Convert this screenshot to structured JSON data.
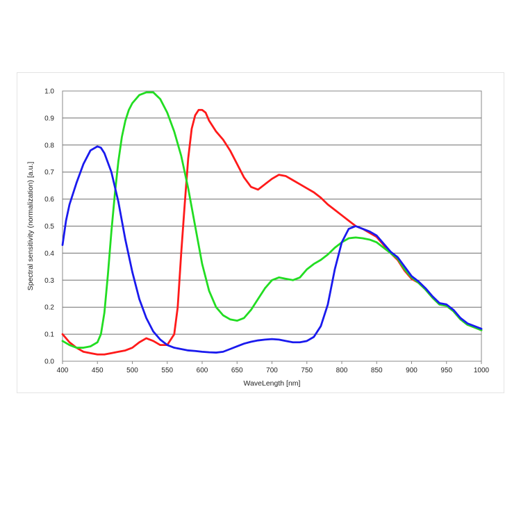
{
  "chart_data": {
    "type": "line",
    "title": "",
    "xlabel": "WaveLength [nm]",
    "ylabel": "Spectral sensitivity (normalization) [a.u.]",
    "xlim": [
      400,
      1000
    ],
    "ylim": [
      0.0,
      1.0
    ],
    "xticks": [
      "400",
      "450",
      "500",
      "550",
      "600",
      "650",
      "700",
      "750",
      "800",
      "850",
      "900",
      "950",
      "1000"
    ],
    "yticks": [
      "0.0",
      "0.1",
      "0.2",
      "0.3",
      "0.4",
      "0.5",
      "0.6",
      "0.7",
      "0.8",
      "0.9",
      "1.0"
    ],
    "grid": true,
    "legend": "none",
    "series": [
      {
        "color": "#ff1a1a",
        "x": [
          400,
          410,
          420,
          430,
          440,
          450,
          460,
          470,
          480,
          490,
          500,
          510,
          520,
          530,
          540,
          550,
          560,
          565,
          570,
          575,
          580,
          585,
          590,
          595,
          600,
          605,
          610,
          620,
          630,
          640,
          650,
          660,
          670,
          680,
          690,
          700,
          710,
          720,
          730,
          740,
          750,
          760,
          770,
          780,
          790,
          800,
          810,
          820,
          830,
          840,
          850,
          860,
          870,
          880,
          890,
          900,
          910,
          920,
          930,
          940,
          950,
          960,
          970,
          980,
          990,
          1000
        ],
        "y": [
          0.1,
          0.07,
          0.05,
          0.035,
          0.03,
          0.025,
          0.025,
          0.03,
          0.035,
          0.04,
          0.05,
          0.07,
          0.085,
          0.075,
          0.06,
          0.06,
          0.1,
          0.2,
          0.4,
          0.58,
          0.75,
          0.86,
          0.91,
          0.93,
          0.93,
          0.92,
          0.89,
          0.85,
          0.82,
          0.78,
          0.73,
          0.68,
          0.645,
          0.635,
          0.655,
          0.675,
          0.69,
          0.685,
          0.67,
          0.655,
          0.64,
          0.625,
          0.605,
          0.58,
          0.56,
          0.54,
          0.52,
          0.5,
          0.49,
          0.475,
          0.46,
          0.43,
          0.4,
          0.375,
          0.335,
          0.305,
          0.29,
          0.265,
          0.235,
          0.21,
          0.205,
          0.185,
          0.155,
          0.135,
          0.125,
          0.115
        ]
      },
      {
        "color": "#22dd22",
        "x": [
          400,
          410,
          420,
          430,
          440,
          450,
          455,
          460,
          465,
          470,
          475,
          480,
          485,
          490,
          495,
          500,
          510,
          520,
          530,
          540,
          550,
          560,
          570,
          580,
          590,
          600,
          610,
          620,
          630,
          640,
          650,
          660,
          670,
          680,
          690,
          700,
          710,
          720,
          730,
          740,
          750,
          760,
          770,
          780,
          790,
          800,
          810,
          820,
          830,
          840,
          850,
          860,
          870,
          880,
          890,
          900,
          910,
          920,
          930,
          940,
          950,
          960,
          970,
          980,
          990,
          1000
        ],
        "y": [
          0.075,
          0.06,
          0.05,
          0.05,
          0.055,
          0.07,
          0.1,
          0.18,
          0.32,
          0.48,
          0.62,
          0.74,
          0.83,
          0.89,
          0.93,
          0.955,
          0.985,
          0.995,
          0.995,
          0.97,
          0.92,
          0.85,
          0.76,
          0.64,
          0.5,
          0.36,
          0.26,
          0.2,
          0.17,
          0.155,
          0.15,
          0.16,
          0.19,
          0.23,
          0.27,
          0.3,
          0.31,
          0.305,
          0.3,
          0.31,
          0.34,
          0.36,
          0.375,
          0.395,
          0.42,
          0.44,
          0.455,
          0.458,
          0.455,
          0.45,
          0.44,
          0.42,
          0.4,
          0.38,
          0.34,
          0.31,
          0.29,
          0.265,
          0.235,
          0.21,
          0.205,
          0.185,
          0.155,
          0.135,
          0.125,
          0.115
        ]
      },
      {
        "color": "#1a1aee",
        "x": [
          400,
          405,
          410,
          420,
          430,
          440,
          450,
          455,
          460,
          470,
          480,
          490,
          500,
          510,
          520,
          530,
          540,
          550,
          560,
          570,
          580,
          590,
          600,
          610,
          620,
          630,
          640,
          650,
          660,
          670,
          680,
          690,
          700,
          710,
          720,
          730,
          740,
          750,
          760,
          770,
          780,
          790,
          800,
          810,
          820,
          830,
          840,
          850,
          860,
          870,
          880,
          890,
          900,
          910,
          920,
          930,
          940,
          950,
          960,
          970,
          980,
          990,
          1000
        ],
        "y": [
          0.43,
          0.52,
          0.58,
          0.66,
          0.73,
          0.78,
          0.795,
          0.79,
          0.77,
          0.7,
          0.59,
          0.45,
          0.33,
          0.23,
          0.16,
          0.11,
          0.08,
          0.06,
          0.05,
          0.045,
          0.04,
          0.038,
          0.035,
          0.033,
          0.032,
          0.035,
          0.045,
          0.055,
          0.065,
          0.072,
          0.077,
          0.08,
          0.082,
          0.08,
          0.075,
          0.07,
          0.07,
          0.075,
          0.09,
          0.13,
          0.21,
          0.34,
          0.44,
          0.49,
          0.5,
          0.49,
          0.48,
          0.465,
          0.435,
          0.405,
          0.385,
          0.35,
          0.315,
          0.295,
          0.27,
          0.24,
          0.215,
          0.21,
          0.19,
          0.16,
          0.14,
          0.13,
          0.12
        ]
      }
    ]
  }
}
